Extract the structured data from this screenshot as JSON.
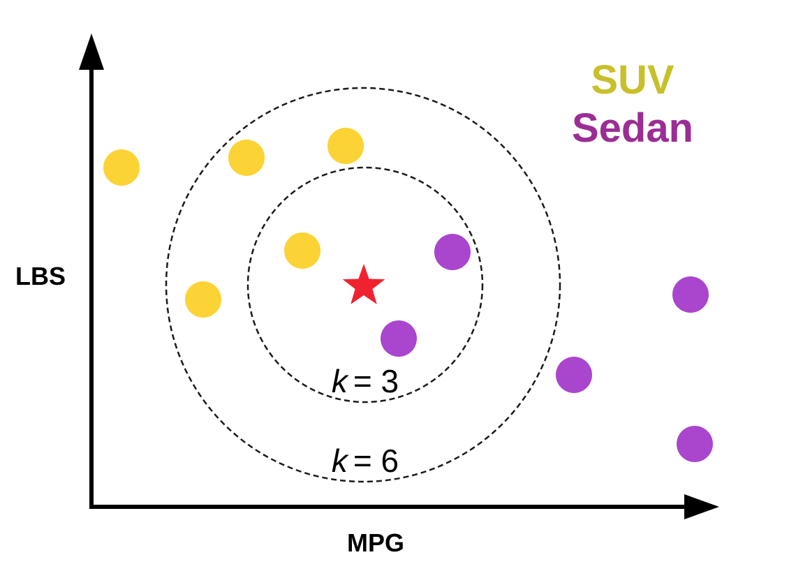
{
  "axes": {
    "x_label": "MPG",
    "y_label": "LBS"
  },
  "legend": [
    {
      "label": "SUV",
      "color": "#c8c02a"
    },
    {
      "label": "Sedan",
      "color": "#9b2d94"
    }
  ],
  "neighborhoods": [
    {
      "k_var": "k",
      "k_value": "= 3"
    },
    {
      "k_var": "k",
      "k_value": "= 6"
    }
  ],
  "query_point": {
    "shape": "star",
    "color": "#f0222f"
  },
  "point_colors": {
    "SUV": "#fbd334",
    "Sedan": "#a946cd"
  },
  "points": [
    {
      "class": "SUV"
    },
    {
      "class": "SUV"
    },
    {
      "class": "SUV"
    },
    {
      "class": "SUV"
    },
    {
      "class": "SUV"
    },
    {
      "class": "Sedan"
    },
    {
      "class": "Sedan"
    },
    {
      "class": "Sedan"
    },
    {
      "class": "Sedan"
    },
    {
      "class": "Sedan"
    }
  ]
}
